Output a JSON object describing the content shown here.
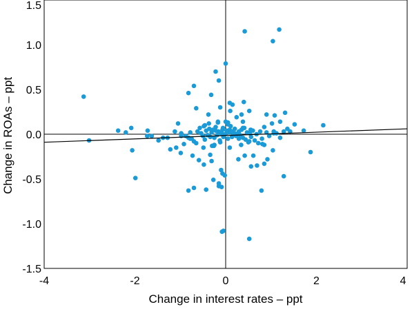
{
  "chart_data": {
    "type": "scatter",
    "xlabel": "Change in interest rates – ppt",
    "ylabel": "Change in ROAs – ppt",
    "xlim": [
      -4,
      4
    ],
    "ylim": [
      -1.5,
      1.5
    ],
    "x_ticks": [
      "-4",
      "-2",
      "0",
      "2",
      "4"
    ],
    "y_ticks": [
      "1.5",
      "1.0",
      "0.5",
      "0.0",
      "-0.5",
      "-1.0",
      "-1.5"
    ],
    "grid": false,
    "point_color": "#1a9ad6",
    "trend_line": {
      "x": [
        -4,
        4
      ],
      "y": [
        -0.09,
        0.06
      ]
    },
    "points": [
      [
        -3.13,
        0.42
      ],
      [
        -3.01,
        -0.07
      ],
      [
        -2.37,
        0.04
      ],
      [
        -2.2,
        0.02
      ],
      [
        -2.08,
        0.07
      ],
      [
        -2.06,
        -0.18
      ],
      [
        -1.99,
        -0.49
      ],
      [
        -1.73,
        -0.02
      ],
      [
        -1.63,
        -0.02
      ],
      [
        -1.48,
        -0.07
      ],
      [
        -1.38,
        -0.04
      ],
      [
        -1.28,
        -0.04
      ],
      [
        -1.12,
        0.03
      ],
      [
        -1.05,
        0.12
      ],
      [
        -0.98,
        -0.02
      ],
      [
        -0.92,
        -0.11
      ],
      [
        -0.88,
        -0.02
      ],
      [
        -0.82,
        -0.04
      ],
      [
        -0.78,
        0.02
      ],
      [
        -0.75,
        -0.05
      ],
      [
        -0.7,
        -0.08
      ],
      [
        -0.65,
        -0.1
      ],
      [
        -0.62,
        0.03
      ],
      [
        -0.57,
        0.07
      ],
      [
        -0.54,
        0.01
      ],
      [
        -0.5,
        -0.02
      ],
      [
        -0.46,
        -0.06
      ],
      [
        -0.43,
        0.04
      ],
      [
        -0.4,
        -0.01
      ],
      [
        -0.37,
        0.12
      ],
      [
        -0.34,
        -0.03
      ],
      [
        -0.31,
        0.02
      ],
      [
        -0.28,
        0.05
      ],
      [
        -0.25,
        -0.04
      ],
      [
        -0.22,
        0.08
      ],
      [
        -0.19,
        -0.01
      ],
      [
        -0.16,
        0.03
      ],
      [
        -0.13,
        -0.07
      ],
      [
        -0.1,
        0.01
      ],
      [
        -0.07,
        0.05
      ],
      [
        -0.04,
        -0.02
      ],
      [
        -0.01,
        0.0
      ],
      [
        0.02,
        0.04
      ],
      [
        0.05,
        -0.05
      ],
      [
        0.08,
        0.02
      ],
      [
        0.11,
        0.09
      ],
      [
        0.14,
        -0.03
      ],
      [
        0.17,
        0.01
      ],
      [
        0.2,
        0.06
      ],
      [
        0.23,
        -0.02
      ],
      [
        0.26,
        0.0
      ],
      [
        0.29,
        0.03
      ],
      [
        0.32,
        -0.01
      ],
      [
        0.35,
        0.05
      ],
      [
        0.38,
        -0.04
      ],
      [
        0.41,
        0.07
      ],
      [
        0.44,
        -0.06
      ],
      [
        0.47,
        0.02
      ],
      [
        0.5,
        -0.09
      ],
      [
        0.53,
        0.01
      ],
      [
        0.56,
        -0.03
      ],
      [
        0.6,
        0.04
      ],
      [
        0.64,
        -0.07
      ],
      [
        0.68,
        0.0
      ],
      [
        0.72,
        -0.1
      ],
      [
        0.76,
        0.03
      ],
      [
        0.8,
        -0.05
      ],
      [
        0.85,
        -0.12
      ],
      [
        0.9,
        0.02
      ],
      [
        0.96,
        -0.02
      ],
      [
        1.02,
        0.12
      ],
      [
        1.06,
        0.03
      ],
      [
        1.12,
        0.01
      ],
      [
        1.2,
        -0.04
      ],
      [
        1.28,
        0.03
      ],
      [
        1.36,
        0.06
      ],
      [
        -1.72,
        0.04
      ],
      [
        -1.22,
        -0.17
      ],
      [
        -1.09,
        -0.15
      ],
      [
        -0.98,
        0.01
      ],
      [
        -0.78,
        -0.05
      ],
      [
        -0.49,
        -0.15
      ],
      [
        -0.46,
        0.1
      ],
      [
        -0.36,
        0.06
      ],
      [
        -0.3,
        -0.13
      ],
      [
        -0.26,
        -0.13
      ],
      [
        -0.22,
        0.04
      ],
      [
        -0.17,
        0.13
      ],
      [
        -0.12,
        -0.09
      ],
      [
        -0.09,
        0.02
      ],
      [
        -0.05,
        -0.03
      ],
      [
        0.05,
        0.13
      ],
      [
        0.09,
        0.05
      ],
      [
        0.14,
        0.03
      ],
      [
        0.2,
        0.01
      ],
      [
        0.29,
        -0.05
      ],
      [
        0.38,
        0.07
      ],
      [
        0.52,
        -0.08
      ],
      [
        -0.82,
        0.46
      ],
      [
        -0.7,
        0.54
      ],
      [
        -0.65,
        0.29
      ],
      [
        -0.48,
        0.09
      ],
      [
        -0.38,
        0.22
      ],
      [
        -0.32,
        0.44
      ],
      [
        -0.22,
        0.7
      ],
      [
        -0.15,
        0.6
      ],
      [
        -0.12,
        0.3
      ],
      [
        -0.06,
        0.07
      ],
      [
        0.0,
        0.79
      ],
      [
        0.09,
        0.35
      ],
      [
        0.1,
        0.26
      ],
      [
        0.15,
        0.33
      ],
      [
        0.24,
        0.19
      ],
      [
        0.35,
        0.22
      ],
      [
        0.4,
        0.36
      ],
      [
        0.52,
        0.26
      ],
      [
        0.9,
        0.22
      ],
      [
        1.06,
        0.01
      ],
      [
        1.08,
        0.21
      ],
      [
        1.31,
        0.24
      ],
      [
        1.42,
        0.03
      ],
      [
        1.52,
        0.11
      ],
      [
        1.72,
        0.04
      ],
      [
        2.15,
        0.1
      ],
      [
        0.0,
        0.14
      ],
      [
        -0.17,
        0.14
      ],
      [
        0.05,
        0.11
      ],
      [
        0.55,
        0.05
      ],
      [
        0.85,
        0.08
      ],
      [
        1.2,
        0.14
      ],
      [
        0.38,
        0.14
      ],
      [
        0.42,
        1.15
      ],
      [
        1.04,
        1.04
      ],
      [
        1.18,
        1.17
      ],
      [
        -0.99,
        -0.21
      ],
      [
        -0.73,
        -0.24
      ],
      [
        -0.59,
        -0.29
      ],
      [
        -0.48,
        -0.34
      ],
      [
        -0.34,
        -0.23
      ],
      [
        -0.31,
        -0.3
      ],
      [
        -0.25,
        -0.12
      ],
      [
        -0.15,
        -0.55
      ],
      [
        -0.1,
        -0.4
      ],
      [
        -0.07,
        -0.44
      ],
      [
        -0.02,
        -0.46
      ],
      [
        0.28,
        -0.28
      ],
      [
        0.42,
        -0.24
      ],
      [
        0.56,
        -0.36
      ],
      [
        0.61,
        -0.24
      ],
      [
        0.81,
        -0.11
      ],
      [
        0.92,
        -0.28
      ],
      [
        1.04,
        -0.18
      ],
      [
        1.28,
        -0.47
      ],
      [
        1.87,
        -0.2
      ],
      [
        0.69,
        -0.35
      ],
      [
        0.85,
        -0.33
      ],
      [
        0.34,
        -0.12
      ],
      [
        -0.82,
        -0.63
      ],
      [
        -0.7,
        -0.6
      ],
      [
        -0.43,
        -0.62
      ],
      [
        -0.27,
        -0.51
      ],
      [
        -0.15,
        -0.58
      ],
      [
        -0.09,
        -0.59
      ],
      [
        0.79,
        -0.63
      ],
      [
        0.09,
        -0.15
      ],
      [
        -0.05,
        -1.08
      ],
      [
        0.52,
        -1.17
      ],
      [
        -0.08,
        -1.09
      ]
    ]
  }
}
